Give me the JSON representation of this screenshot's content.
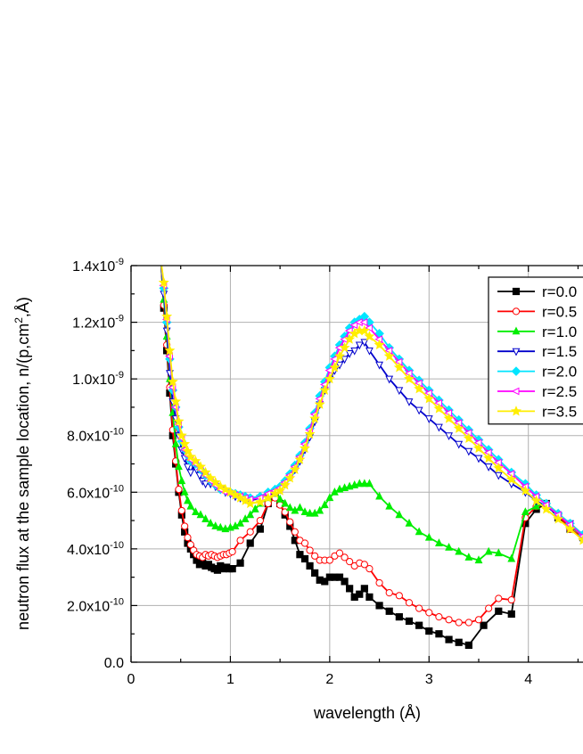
{
  "chart_data": {
    "type": "line",
    "title": "",
    "xlabel": "wavelength (Å)",
    "ylabel": "neutron flux at the sample location, n/(p,cm²,Å)",
    "xlim": [
      0,
      4.55
    ],
    "ylim": [
      0,
      1.4e-09
    ],
    "grid": true,
    "legend_position": "top-right",
    "x_ticks": [
      {
        "value": 0,
        "label": "0"
      },
      {
        "value": 1,
        "label": "1"
      },
      {
        "value": 2,
        "label": "2"
      },
      {
        "value": 3,
        "label": "3"
      },
      {
        "value": 4,
        "label": "4"
      }
    ],
    "y_ticks": [
      {
        "value": 0,
        "label": "0.0"
      },
      {
        "value": 2e-10,
        "mant": "2.0x10",
        "exp": "-10"
      },
      {
        "value": 4e-10,
        "mant": "4.0x10",
        "exp": "-10"
      },
      {
        "value": 6e-10,
        "mant": "6.0x10",
        "exp": "-10"
      },
      {
        "value": 8e-10,
        "mant": "8.0x10",
        "exp": "-10"
      },
      {
        "value": 1e-09,
        "mant": "1.0x10",
        "exp": "-9"
      },
      {
        "value": 1.2e-09,
        "mant": "1.2x10",
        "exp": "-9"
      },
      {
        "value": 1.4e-09,
        "mant": "1.4x10",
        "exp": "-9"
      }
    ],
    "series": [
      {
        "name": "r=0.0",
        "color": "#000000",
        "marker": "square-filled",
        "x": [
          0.3,
          0.33,
          0.36,
          0.39,
          0.42,
          0.45,
          0.48,
          0.51,
          0.54,
          0.57,
          0.6,
          0.63,
          0.66,
          0.69,
          0.72,
          0.75,
          0.78,
          0.81,
          0.84,
          0.87,
          0.9,
          0.93,
          0.96,
          0.99,
          1.02,
          1.1,
          1.2,
          1.3,
          1.38,
          1.45,
          1.5,
          1.55,
          1.6,
          1.65,
          1.7,
          1.75,
          1.8,
          1.85,
          1.9,
          1.95,
          2.0,
          2.05,
          2.1,
          2.15,
          2.2,
          2.25,
          2.3,
          2.35,
          2.4,
          2.5,
          2.6,
          2.7,
          2.8,
          2.9,
          3.0,
          3.1,
          3.2,
          3.3,
          3.4,
          3.55,
          3.7,
          3.83,
          3.97,
          4.08,
          4.18,
          4.3,
          4.42,
          4.55
        ],
        "y": [
          1.42e-09,
          1.25e-09,
          1.1e-09,
          9.5e-10,
          8e-10,
          7e-10,
          6e-10,
          5.2e-10,
          4.6e-10,
          4.2e-10,
          4e-10,
          3.8e-10,
          3.6e-10,
          3.45e-10,
          3.5e-10,
          3.4e-10,
          3.45e-10,
          3.35e-10,
          3.3e-10,
          3.25e-10,
          3.4e-10,
          3.3e-10,
          3.35e-10,
          3.3e-10,
          3.3e-10,
          3.5e-10,
          4.2e-10,
          4.7e-10,
          5.6e-10,
          5.9e-10,
          5.6e-10,
          5.2e-10,
          4.8e-10,
          4.3e-10,
          3.8e-10,
          3.65e-10,
          3.4e-10,
          3.15e-10,
          2.9e-10,
          2.85e-10,
          3e-10,
          3e-10,
          3e-10,
          2.85e-10,
          2.6e-10,
          2.3e-10,
          2.4e-10,
          2.6e-10,
          2.3e-10,
          2e-10,
          1.8e-10,
          1.6e-10,
          1.45e-10,
          1.3e-10,
          1.1e-10,
          1e-10,
          8e-11,
          7e-11,
          6e-11,
          1.3e-10,
          1.8e-10,
          1.7e-10,
          4.9e-10,
          5.4e-10,
          5.6e-10,
          5.1e-10,
          4.7e-10,
          4.4e-10
        ]
      },
      {
        "name": "r=0.5",
        "color": "#ff0000",
        "marker": "circle-open",
        "x": [
          0.3,
          0.33,
          0.36,
          0.39,
          0.42,
          0.45,
          0.48,
          0.51,
          0.54,
          0.57,
          0.6,
          0.63,
          0.66,
          0.69,
          0.72,
          0.75,
          0.78,
          0.81,
          0.84,
          0.87,
          0.9,
          0.93,
          0.96,
          0.99,
          1.02,
          1.1,
          1.2,
          1.3,
          1.38,
          1.45,
          1.5,
          1.55,
          1.6,
          1.65,
          1.7,
          1.75,
          1.8,
          1.85,
          1.9,
          1.95,
          2.0,
          2.05,
          2.1,
          2.15,
          2.2,
          2.25,
          2.3,
          2.35,
          2.4,
          2.5,
          2.6,
          2.7,
          2.8,
          2.9,
          3.0,
          3.1,
          3.2,
          3.3,
          3.4,
          3.5,
          3.6,
          3.7,
          3.83,
          3.97,
          4.08,
          4.18,
          4.3,
          4.42,
          4.55
        ],
        "y": [
          1.42e-09,
          1.26e-09,
          1.12e-09,
          9.7e-10,
          8.2e-10,
          7.1e-10,
          6.1e-10,
          5.35e-10,
          4.8e-10,
          4.4e-10,
          4.15e-10,
          3.95e-10,
          3.8e-10,
          3.75e-10,
          3.7e-10,
          3.8e-10,
          3.75e-10,
          3.8e-10,
          3.75e-10,
          3.7e-10,
          3.75e-10,
          3.8e-10,
          3.8e-10,
          3.85e-10,
          3.9e-10,
          4.3e-10,
          4.6e-10,
          5e-10,
          5.6e-10,
          5.8e-10,
          5.55e-10,
          5.3e-10,
          4.95e-10,
          4.6e-10,
          4.3e-10,
          4.2e-10,
          3.95e-10,
          3.75e-10,
          3.6e-10,
          3.6e-10,
          3.6e-10,
          3.75e-10,
          3.85e-10,
          3.7e-10,
          3.55e-10,
          3.4e-10,
          3.5e-10,
          3.45e-10,
          3.3e-10,
          2.8e-10,
          2.45e-10,
          2.35e-10,
          2.1e-10,
          1.9e-10,
          1.75e-10,
          1.6e-10,
          1.5e-10,
          1.4e-10,
          1.4e-10,
          1.5e-10,
          1.9e-10,
          2.25e-10,
          2.2e-10,
          5.1e-10,
          5.5e-10,
          5.6e-10,
          5.2e-10,
          4.7e-10,
          4.4e-10
        ]
      },
      {
        "name": "r=1.0",
        "color": "#00ee00",
        "marker": "triangle-up-filled",
        "x": [
          0.3,
          0.33,
          0.36,
          0.39,
          0.42,
          0.45,
          0.48,
          0.51,
          0.54,
          0.57,
          0.6,
          0.65,
          0.7,
          0.75,
          0.8,
          0.85,
          0.9,
          0.95,
          1.0,
          1.05,
          1.1,
          1.15,
          1.2,
          1.25,
          1.3,
          1.38,
          1.45,
          1.5,
          1.55,
          1.6,
          1.65,
          1.7,
          1.75,
          1.8,
          1.85,
          1.9,
          1.95,
          2.0,
          2.05,
          2.1,
          2.15,
          2.2,
          2.25,
          2.3,
          2.35,
          2.4,
          2.5,
          2.6,
          2.7,
          2.8,
          2.9,
          3.0,
          3.1,
          3.2,
          3.3,
          3.4,
          3.5,
          3.6,
          3.7,
          3.83,
          3.97,
          4.08,
          4.18,
          4.3,
          4.42,
          4.55
        ],
        "y": [
          1.42e-09,
          1.28e-09,
          1.15e-09,
          1e-09,
          8.8e-10,
          7.7e-10,
          6.9e-10,
          6.4e-10,
          6e-10,
          5.7e-10,
          5.5e-10,
          5.3e-10,
          5.2e-10,
          5.05e-10,
          4.9e-10,
          4.8e-10,
          4.75e-10,
          4.7e-10,
          4.75e-10,
          4.8e-10,
          4.9e-10,
          5.05e-10,
          5.2e-10,
          5.4e-10,
          5.6e-10,
          5.8e-10,
          5.95e-10,
          5.75e-10,
          5.6e-10,
          5.45e-10,
          5.35e-10,
          5.45e-10,
          5.3e-10,
          5.25e-10,
          5.25e-10,
          5.35e-10,
          5.55e-10,
          5.8e-10,
          6e-10,
          6.1e-10,
          6.15e-10,
          6.2e-10,
          6.25e-10,
          6.3e-10,
          6.3e-10,
          6.3e-10,
          5.85e-10,
          5.5e-10,
          5.2e-10,
          4.9e-10,
          4.6e-10,
          4.4e-10,
          4.2e-10,
          4.05e-10,
          3.9e-10,
          3.7e-10,
          3.6e-10,
          3.9e-10,
          3.85e-10,
          3.65e-10,
          5.3e-10,
          5.5e-10,
          5.6e-10,
          5.25e-10,
          4.8e-10,
          4.45e-10
        ]
      },
      {
        "name": "r=1.5",
        "color": "#0000cc",
        "marker": "triangle-down-open",
        "x": [
          0.3,
          0.33,
          0.36,
          0.39,
          0.42,
          0.45,
          0.48,
          0.51,
          0.54,
          0.57,
          0.6,
          0.63,
          0.66,
          0.69,
          0.72,
          0.75,
          0.8,
          0.85,
          0.9,
          0.95,
          1.0,
          1.05,
          1.1,
          1.15,
          1.2,
          1.3,
          1.38,
          1.45,
          1.5,
          1.55,
          1.6,
          1.65,
          1.7,
          1.75,
          1.8,
          1.85,
          1.9,
          1.95,
          2.0,
          2.05,
          2.1,
          2.15,
          2.2,
          2.25,
          2.3,
          2.35,
          2.4,
          2.5,
          2.6,
          2.7,
          2.8,
          2.9,
          3.0,
          3.1,
          3.2,
          3.3,
          3.4,
          3.5,
          3.6,
          3.7,
          3.83,
          3.97,
          4.08,
          4.18,
          4.3,
          4.42,
          4.55
        ],
        "y": [
          1.42e-09,
          1.3e-09,
          1.17e-09,
          1.02e-09,
          9.2e-10,
          8.6e-10,
          8e-10,
          7.5e-10,
          7.2e-10,
          6.9e-10,
          6.7e-10,
          6.95e-10,
          6.8e-10,
          6.6e-10,
          6.4e-10,
          6.3e-10,
          6.3e-10,
          6.2e-10,
          6.1e-10,
          6e-10,
          5.95e-10,
          5.85e-10,
          5.8e-10,
          5.75e-10,
          5.7e-10,
          5.8e-10,
          5.9e-10,
          6e-10,
          6.1e-10,
          6.3e-10,
          6.55e-10,
          6.8e-10,
          7.1e-10,
          7.5e-10,
          7.95e-10,
          8.5e-10,
          9.1e-10,
          9.6e-10,
          1e-09,
          1.03e-09,
          1.05e-09,
          1.07e-09,
          1.09e-09,
          1.1e-09,
          1.12e-09,
          1.13e-09,
          1.1e-09,
          1.05e-09,
          1e-09,
          9.6e-10,
          9.2e-10,
          8.9e-10,
          8.6e-10,
          8.3e-10,
          8e-10,
          7.7e-10,
          7.45e-10,
          7.2e-10,
          6.9e-10,
          6.6e-10,
          6.3e-10,
          6e-10,
          5.7e-10,
          5.5e-10,
          5.2e-10,
          4.9e-10,
          4.5e-10
        ]
      },
      {
        "name": "r=2.0",
        "color": "#00e5ff",
        "marker": "diamond-filled",
        "x": [
          0.3,
          0.33,
          0.36,
          0.39,
          0.42,
          0.45,
          0.48,
          0.51,
          0.54,
          0.57,
          0.6,
          0.65,
          0.7,
          0.75,
          0.8,
          0.85,
          0.9,
          0.95,
          1.0,
          1.05,
          1.1,
          1.15,
          1.2,
          1.3,
          1.38,
          1.45,
          1.5,
          1.55,
          1.6,
          1.65,
          1.7,
          1.75,
          1.8,
          1.85,
          1.9,
          1.95,
          2.0,
          2.05,
          2.1,
          2.15,
          2.2,
          2.25,
          2.3,
          2.35,
          2.4,
          2.5,
          2.6,
          2.7,
          2.8,
          2.9,
          3.0,
          3.1,
          3.2,
          3.3,
          3.4,
          3.5,
          3.6,
          3.7,
          3.83,
          3.97,
          4.08,
          4.18,
          4.3,
          4.42,
          4.55
        ],
        "y": [
          1.42e-09,
          1.32e-09,
          1.2e-09,
          1.07e-09,
          9.6e-10,
          9e-10,
          8.3e-10,
          7.8e-10,
          7.5e-10,
          7.3e-10,
          7.1e-10,
          7e-10,
          6.8e-10,
          6.6e-10,
          6.4e-10,
          6.25e-10,
          6.1e-10,
          6.05e-10,
          6e-10,
          5.95e-10,
          5.9e-10,
          5.85e-10,
          5.8e-10,
          5.85e-10,
          6e-10,
          6.1e-10,
          6.2e-10,
          6.4e-10,
          6.65e-10,
          6.95e-10,
          7.3e-10,
          7.75e-10,
          8.25e-10,
          8.8e-10,
          9.4e-10,
          9.9e-10,
          1.04e-09,
          1.08e-09,
          1.12e-09,
          1.15e-09,
          1.18e-09,
          1.2e-09,
          1.21e-09,
          1.22e-09,
          1.2e-09,
          1.16e-09,
          1.11e-09,
          1.07e-09,
          1.03e-09,
          9.95e-10,
          9.6e-10,
          9.25e-10,
          8.9e-10,
          8.55e-10,
          8.2e-10,
          7.85e-10,
          7.5e-10,
          7.15e-10,
          6.7e-10,
          6.3e-10,
          5.9e-10,
          5.6e-10,
          5.25e-10,
          4.9e-10,
          4.5e-10
        ]
      },
      {
        "name": "r=2.5",
        "color": "#ff00ff",
        "marker": "triangle-left-open",
        "x": [
          0.3,
          0.33,
          0.36,
          0.39,
          0.42,
          0.45,
          0.48,
          0.51,
          0.54,
          0.57,
          0.6,
          0.65,
          0.7,
          0.75,
          0.8,
          0.85,
          0.9,
          0.95,
          1.0,
          1.05,
          1.1,
          1.15,
          1.2,
          1.3,
          1.38,
          1.45,
          1.5,
          1.55,
          1.6,
          1.65,
          1.7,
          1.75,
          1.8,
          1.85,
          1.9,
          1.95,
          2.0,
          2.05,
          2.1,
          2.15,
          2.2,
          2.25,
          2.3,
          2.35,
          2.4,
          2.5,
          2.6,
          2.7,
          2.8,
          2.9,
          3.0,
          3.1,
          3.2,
          3.3,
          3.4,
          3.5,
          3.6,
          3.7,
          3.83,
          3.97,
          4.08,
          4.18,
          4.3,
          4.42,
          4.55
        ],
        "y": [
          1.42e-09,
          1.33e-09,
          1.21e-09,
          1.08e-09,
          9.7e-10,
          9e-10,
          8.4e-10,
          7.9e-10,
          7.5e-10,
          7.3e-10,
          7.15e-10,
          7e-10,
          6.8e-10,
          6.6e-10,
          6.4e-10,
          6.25e-10,
          6.1e-10,
          6e-10,
          5.95e-10,
          5.9e-10,
          5.85e-10,
          5.8e-10,
          5.75e-10,
          5.8e-10,
          5.95e-10,
          6.05e-10,
          6.15e-10,
          6.35e-10,
          6.6e-10,
          6.9e-10,
          7.25e-10,
          7.7e-10,
          8.2e-10,
          8.75e-10,
          9.3e-10,
          9.8e-10,
          1.03e-09,
          1.07e-09,
          1.11e-09,
          1.14e-09,
          1.17e-09,
          1.19e-09,
          1.2e-09,
          1.2e-09,
          1.18e-09,
          1.14e-09,
          1.1e-09,
          1.06e-09,
          1.02e-09,
          9.85e-10,
          9.5e-10,
          9.15e-10,
          8.8e-10,
          8.45e-10,
          8.1e-10,
          7.75e-10,
          7.4e-10,
          7.05e-10,
          6.65e-10,
          6.2e-10,
          5.85e-10,
          5.55e-10,
          5.2e-10,
          4.85e-10,
          4.45e-10
        ]
      },
      {
        "name": "r=3.5",
        "color": "#ffee00",
        "marker": "star-filled",
        "x": [
          0.3,
          0.33,
          0.36,
          0.39,
          0.42,
          0.45,
          0.48,
          0.51,
          0.54,
          0.57,
          0.6,
          0.65,
          0.7,
          0.75,
          0.8,
          0.85,
          0.9,
          0.95,
          1.0,
          1.05,
          1.1,
          1.15,
          1.2,
          1.3,
          1.38,
          1.45,
          1.5,
          1.55,
          1.6,
          1.65,
          1.7,
          1.75,
          1.8,
          1.85,
          1.9,
          1.95,
          2.0,
          2.05,
          2.1,
          2.15,
          2.2,
          2.25,
          2.3,
          2.35,
          2.4,
          2.5,
          2.6,
          2.7,
          2.8,
          2.9,
          3.0,
          3.1,
          3.2,
          3.3,
          3.4,
          3.5,
          3.6,
          3.7,
          3.83,
          3.97,
          4.08,
          4.18,
          4.3,
          4.42,
          4.55
        ],
        "y": [
          1.42e-09,
          1.34e-09,
          1.22e-09,
          1.1e-09,
          9.9e-10,
          9.2e-10,
          8.5e-10,
          8e-10,
          7.7e-10,
          7.45e-10,
          7.25e-10,
          7.1e-10,
          6.9e-10,
          6.7e-10,
          6.5e-10,
          6.35e-10,
          6.2e-10,
          6.1e-10,
          6e-10,
          5.9e-10,
          5.8e-10,
          5.7e-10,
          5.6e-10,
          5.65e-10,
          5.8e-10,
          5.95e-10,
          6.05e-10,
          6.25e-10,
          6.5e-10,
          6.8e-10,
          7.15e-10,
          7.55e-10,
          8.05e-10,
          8.6e-10,
          9.1e-10,
          9.6e-10,
          1e-09,
          1.04e-09,
          1.08e-09,
          1.11e-09,
          1.14e-09,
          1.16e-09,
          1.17e-09,
          1.17e-09,
          1.15e-09,
          1.12e-09,
          1.08e-09,
          1.04e-09,
          1e-09,
          9.65e-10,
          9.3e-10,
          8.95e-10,
          8.6e-10,
          8.25e-10,
          7.9e-10,
          7.55e-10,
          7.2e-10,
          6.85e-10,
          6.45e-10,
          6.05e-10,
          5.7e-10,
          5.4e-10,
          5.05e-10,
          4.7e-10,
          4.3e-10
        ]
      }
    ]
  }
}
